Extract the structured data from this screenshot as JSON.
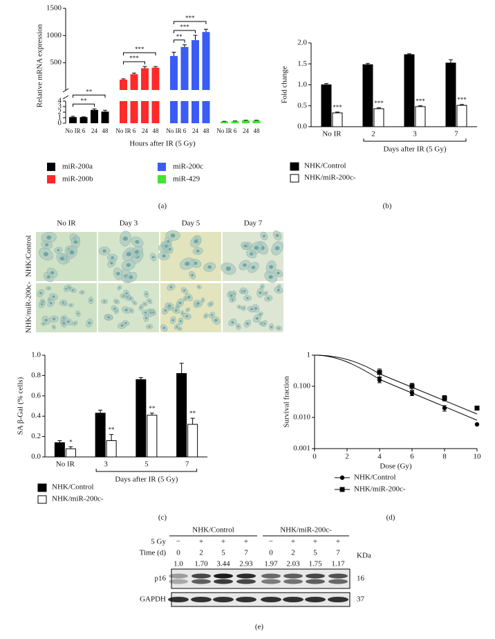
{
  "chart_data": [
    {
      "type": "bar",
      "panel_label": "(a)",
      "ylabel": "Relative mRNA expression",
      "xlabel": "Hours after IR (5 Gy)",
      "categories": [
        "No IR",
        "6",
        "24",
        "48"
      ],
      "ylim_lower": [
        0,
        4
      ],
      "yticks_lower": [
        0,
        1,
        2,
        3,
        4
      ],
      "ylim_upper": [
        0,
        1500
      ],
      "yticks_upper": [
        500,
        1000,
        1500
      ],
      "series": [
        {
          "name": "miR-200a",
          "color": "#000000",
          "values": [
            1.1,
            1.1,
            2.4,
            2.1
          ],
          "errors": [
            0.15,
            0.05,
            0.2,
            0.25
          ],
          "brackets": [
            {
              "text": "**",
              "to": "24"
            },
            {
              "text": "**",
              "to": "48"
            }
          ]
        },
        {
          "name": "miR-200b",
          "color": "#ff2a2a",
          "values": [
            190,
            290,
            400,
            410
          ],
          "errors": [
            15,
            20,
            30,
            20
          ],
          "brackets": [
            {
              "text": "***",
              "to": "24"
            },
            {
              "text": "***",
              "to": "48"
            }
          ]
        },
        {
          "name": "miR-200c",
          "color": "#3a5cf5",
          "values": [
            625,
            790,
            915,
            1065
          ],
          "errors": [
            70,
            40,
            90,
            50
          ],
          "brackets": [
            {
              "text": "**",
              "to": "6"
            },
            {
              "text": "***",
              "to": "24"
            },
            {
              "text": "***",
              "to": "48"
            }
          ]
        },
        {
          "name": "miR-429",
          "color": "#3ee62e",
          "values": [
            0.3,
            0.35,
            0.5,
            0.5
          ],
          "errors": [
            0.05,
            0.05,
            0.05,
            0.05
          ],
          "brackets": []
        }
      ]
    },
    {
      "type": "bar",
      "panel_label": "(b)",
      "ylabel": "Fold change",
      "xlabel": "Days after IR (5 Gy)",
      "categories": [
        "No IR",
        "2",
        "3",
        "7"
      ],
      "ylim": [
        0,
        2
      ],
      "yticks": [
        {
          "value": 0,
          "label": "0.0"
        },
        0.5,
        {
          "value": 1,
          "label": "1.0"
        },
        1.5,
        {
          "value": 2,
          "label": "2.0"
        }
      ],
      "series": [
        {
          "name": "NHK/Control",
          "color": "#000000",
          "values": [
            1.0,
            1.48,
            1.72,
            1.52
          ],
          "errors": [
            0.03,
            0.03,
            0.02,
            0.08
          ]
        },
        {
          "name": "NHK/miR-200c-",
          "color": "#ffffff",
          "values": [
            0.33,
            0.43,
            0.48,
            0.51
          ],
          "errors": [
            0.02,
            0.02,
            0.02,
            0.02
          ],
          "significance": [
            "***",
            "***",
            "***",
            "***"
          ]
        }
      ]
    },
    {
      "type": "bar",
      "panel_label": "(c)",
      "ylabel": "SA β-Gal (% cells)",
      "xlabel": "Days after IR (5 Gy)",
      "categories": [
        "No IR",
        "3",
        "5",
        "7"
      ],
      "ylim": [
        0,
        1
      ],
      "yticks": [
        {
          "value": 0,
          "label": "0.0"
        },
        0.2,
        0.4,
        0.6,
        0.8,
        {
          "value": 1,
          "label": "1.0"
        }
      ],
      "series": [
        {
          "name": "NHK/Control",
          "color": "#000000",
          "values": [
            0.14,
            0.43,
            0.76,
            0.82
          ],
          "errors": [
            0.02,
            0.03,
            0.02,
            0.1
          ]
        },
        {
          "name": "NHK/miR-200c-",
          "color": "#ffffff",
          "values": [
            0.08,
            0.16,
            0.41,
            0.32
          ],
          "errors": [
            0.02,
            0.06,
            0.02,
            0.06
          ],
          "significance": [
            "*",
            "**",
            "**",
            "**"
          ]
        }
      ]
    },
    {
      "type": "scatter",
      "panel_label": "(d)",
      "ylabel": "Survival fraction",
      "xlabel": "Dose (Gy)",
      "log_y": true,
      "x": [
        4,
        6,
        8,
        10
      ],
      "xlim": [
        0,
        10
      ],
      "xticks": [
        0,
        2,
        4,
        6,
        8,
        10
      ],
      "ylim": [
        0.001,
        1
      ],
      "yticks": [
        0.001,
        {
          "value": 0.01,
          "label": "0.010"
        },
        {
          "value": 0.1,
          "label": "0.100"
        },
        1
      ],
      "series": [
        {
          "name": "NHK/Control",
          "color": "#000000",
          "marker": "circle",
          "values": [
            0.16,
            0.06,
            0.02,
            0.006
          ],
          "errors": [
            0.03,
            0.01,
            0.004,
            0
          ]
        },
        {
          "name": "NHK/miR-200c-",
          "color": "#000000",
          "marker": "square",
          "values": [
            0.28,
            0.1,
            0.042,
            0.02
          ],
          "errors": [
            0.08,
            0.025,
            0.008,
            0
          ]
        }
      ]
    }
  ],
  "micrographs": {
    "columns": [
      "No IR",
      "Day 3",
      "Day 5",
      "Day 7"
    ],
    "rows": [
      "NHK/Control",
      "NHK/miR-200c-"
    ]
  },
  "blot": {
    "panel_label": "(e)",
    "groups": [
      "NHK/Control",
      "NHK/miR-200c-"
    ],
    "dose_label": "5 Gy",
    "time_label": "Time (d)",
    "dose": [
      "−",
      "+",
      "+",
      "+",
      "−",
      "+",
      "+",
      "+"
    ],
    "time": [
      "0",
      "2",
      "5",
      "7",
      "0",
      "2",
      "5",
      "7"
    ],
    "quantification": [
      "1.0",
      "1.70",
      "3.44",
      "2.93",
      "1.97",
      "2.03",
      "1.75",
      "1.17"
    ],
    "unit_label": "KDa",
    "proteins": [
      {
        "name": "p16",
        "kda": "16"
      },
      {
        "name": "GAPDH",
        "kda": "37"
      }
    ]
  }
}
